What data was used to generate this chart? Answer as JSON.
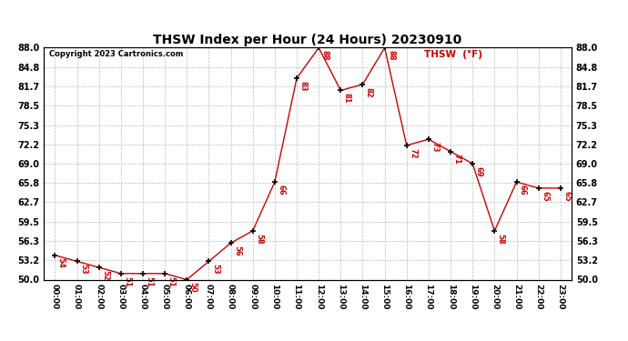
{
  "title": "THSW Index per Hour (24 Hours) 20230910",
  "copyright": "Copyright 2023 Cartronics.com",
  "legend_label": "THSW  (°F)",
  "hours": [
    "00:00",
    "01:00",
    "02:00",
    "03:00",
    "04:00",
    "05:00",
    "06:00",
    "07:00",
    "08:00",
    "09:00",
    "10:00",
    "11:00",
    "12:00",
    "13:00",
    "14:00",
    "15:00",
    "16:00",
    "17:00",
    "18:00",
    "19:00",
    "20:00",
    "21:00",
    "22:00",
    "23:00"
  ],
  "values": [
    54,
    53,
    52,
    51,
    51,
    51,
    50,
    53,
    56,
    58,
    66,
    83,
    88,
    81,
    82,
    88,
    72,
    73,
    71,
    69,
    58,
    66,
    65,
    65
  ],
  "ylim": [
    50.0,
    88.0
  ],
  "yticks": [
    50.0,
    53.2,
    56.3,
    59.5,
    62.7,
    65.8,
    69.0,
    72.2,
    75.3,
    78.5,
    81.7,
    84.8,
    88.0
  ],
  "line_color": "#cc0000",
  "marker_color": "#000000",
  "label_color": "#cc0000",
  "bg_color": "#ffffff",
  "grid_color": "#bbbbbb",
  "title_color": "#000000",
  "copyright_color": "#000000",
  "legend_color": "#cc0000"
}
